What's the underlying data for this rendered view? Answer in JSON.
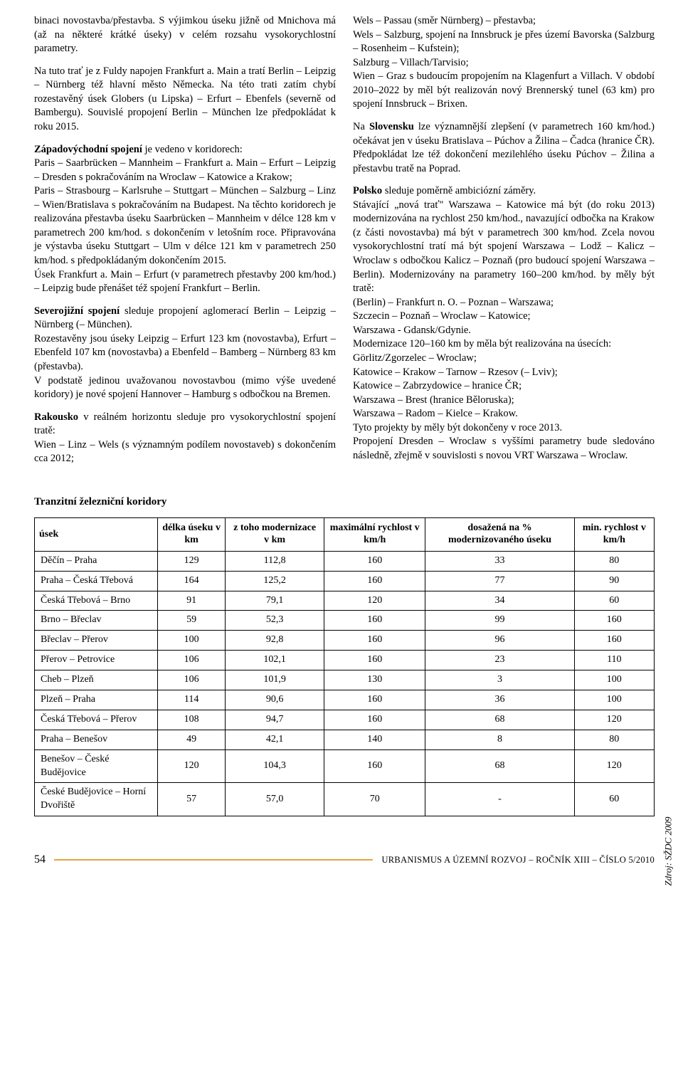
{
  "left_col": {
    "p1": "binaci novostavba/přestavba. S výjimkou úseku jižně od Mnichova má (až na některé krátké úseky) v celém rozsahu vysokorychlostní parametry.",
    "p2": "Na tuto trať je z Fuldy napojen Frankfurt a. Main a tratí Berlin – Leipzig – Nürnberg též hlavní město Německa. Na této trati zatím chybí rozestavěný úsek Globers (u Lipska) – Erfurt – Ebenfels (severně od Bambergu). Souvislé propojení Berlin – München lze předpokládat k roku 2015.",
    "p3a": "Západovýchodní spojení",
    "p3b": " je vedeno v koridorech:",
    "p3c": "Paris – Saarbrücken – Mannheim – Frankfurt a. Main – Erfurt – Leipzig – Dresden s pokračováním na Wroclaw – Katowice a Krakow;",
    "p3d": "Paris – Strasbourg – Karlsruhe – Stuttgart – München – Salzburg – Linz – Wien/Bratislava s pokračováním na Budapest. Na těchto koridorech je realizována přestavba úseku Saarbrücken – Mannheim v délce 128 km v parametrech 200 km/hod. s dokončením v letošním roce. Připravována je výstavba úseku Stuttgart – Ulm v délce 121 km v parametrech 250 km/hod. s předpokládaným dokončením 2015.",
    "p3e": "Úsek Frankfurt a. Main – Erfurt (v parametrech přestavby 200 km/hod.) – Leipzig bude přenášet též spojení Frankfurt – Berlin.",
    "p4a": "Severojižní spojení",
    "p4b": " sleduje propojení aglomerací Berlin – Leipzig – Nürnberg (– München).",
    "p4c": "Rozestavěny jsou úseky Leipzig – Erfurt 123 km (novostavba), Erfurt – Ebenfeld 107 km (novostavba) a Ebenfeld – Bamberg – Nürnberg 83 km (přestavba).",
    "p4d": "V podstatě jedinou uvažovanou novostavbou (mimo výše uvedené koridory) je nové spojení Hannover – Hamburg s odbočkou na Bremen.",
    "p5a": "Rakousko",
    "p5b": " v reálném horizontu sleduje pro vysokorychlostní spojení tratě:",
    "p5c": "Wien – Linz – Wels (s významným podílem novostaveb) s dokončením cca 2012;"
  },
  "right_col": {
    "p1": "Wels – Passau (směr Nürnberg) – přestavba;",
    "p1b": "Wels – Salzburg, spojení na Innsbruck je přes území Bavorska (Salzburg – Rosenheim – Kufstein);",
    "p1c": "Salzburg – Villach/Tarvisio;",
    "p1d": "Wien – Graz s budoucím propojením na Klagenfurt a Villach. V období 2010–2022 by měl být realizován nový Brennerský tunel (63 km) pro spojení Innsbruck – Brixen.",
    "p2a": "Na ",
    "p2b": "Slovensku",
    "p2c": " lze významnější zlepšení (v parametrech 160 km/hod.) očekávat jen v úseku Bratislava – Púchov a Žilina – Čadca (hranice ČR). Předpokládat lze též dokončení mezilehlého úseku Púchov – Žilina a přestavbu tratě na Poprad.",
    "p3a": "Polsko",
    "p3b": " sleduje poměrně ambiciózní záměry.",
    "p3c": "Stávající „nová trať\" Warszawa – Katowice má být (do roku 2013) modernizována na rychlost 250 km/hod., navazující odbočka na Krakow (z části novostavba) má být v parametrech 300 km/hod. Zcela novou vysokorychlostní tratí má být spojení Warszawa – Lodž – Kalicz – Wroclaw s odbočkou Kalicz – Poznaň (pro budoucí spojení Warszawa – Berlin). Modernizovány na parametry 160–200 km/hod. by měly být tratě:",
    "p3d": "(Berlin) – Frankfurt n. O. – Poznan – Warszawa;",
    "p3e": "Szczecin – Poznaň – Wroclaw – Katowice;",
    "p3f": "Warszawa - Gdansk/Gdynie.",
    "p3g": "Modernizace 120–160 km by měla být realizována na úsecích:",
    "p3h": "Görlitz/Zgorzelec – Wroclaw;",
    "p3i": "Katowice – Krakow – Tarnow – Rzesov (– Lviv);",
    "p3j": "Katowice – Zabrzydowice – hranice ČR;",
    "p3k": "Warszawa – Brest (hranice Běloruska);",
    "p3l": "Warszawa – Radom – Kielce – Krakow.",
    "p3m": "Tyto projekty by měly být dokončeny v roce 2013.",
    "p3n": "Propojení Dresden – Wroclaw s vyššími parametry bude sledováno následně, zřejmě v souvislosti s novou VRT Warszawa – Wroclaw."
  },
  "table": {
    "title": "Tranzitní železniční koridory",
    "headers": [
      "úsek",
      "délka úseku v km",
      "z toho modernizace v km",
      "maximální rychlost v km/h",
      "dosažená na % modernizovaného úseku",
      "min. rychlost v km/h"
    ],
    "rows": [
      [
        "Děčín – Praha",
        "129",
        "112,8",
        "160",
        "33",
        "80"
      ],
      [
        "Praha – Česká Třebová",
        "164",
        "125,2",
        "160",
        "77",
        "90"
      ],
      [
        "Česká Třebová – Brno",
        "91",
        "79,1",
        "120",
        "34",
        "60"
      ],
      [
        "Brno – Břeclav",
        "59",
        "52,3",
        "160",
        "99",
        "160"
      ],
      [
        "Břeclav – Přerov",
        "100",
        "92,8",
        "160",
        "96",
        "160"
      ],
      [
        "Přerov – Petrovice",
        "106",
        "102,1",
        "160",
        "23",
        "110"
      ],
      [
        "Cheb – Plzeň",
        "106",
        "101,9",
        "130",
        "3",
        "100"
      ],
      [
        "Plzeň – Praha",
        "114",
        "90,6",
        "160",
        "36",
        "100"
      ],
      [
        "Česká Třebová – Přerov",
        "108",
        "94,7",
        "160",
        "68",
        "120"
      ],
      [
        "Praha – Benešov",
        "49",
        "42,1",
        "140",
        "8",
        "80"
      ],
      [
        "Benešov – České Budějovice",
        "120",
        "104,3",
        "160",
        "68",
        "120"
      ],
      [
        "České Budějovice – Horní Dvořiště",
        "57",
        "57,0",
        "70",
        "-",
        "60"
      ]
    ],
    "source_label": "Zdroj: SŽDC 2009"
  },
  "footer": {
    "page": "54",
    "text": "URBANISMUS A ÚZEMNÍ ROZVOJ – ROČNÍK XIII – ČÍSLO 5/2010"
  },
  "style": {
    "accent_color": "#e8a33d"
  }
}
